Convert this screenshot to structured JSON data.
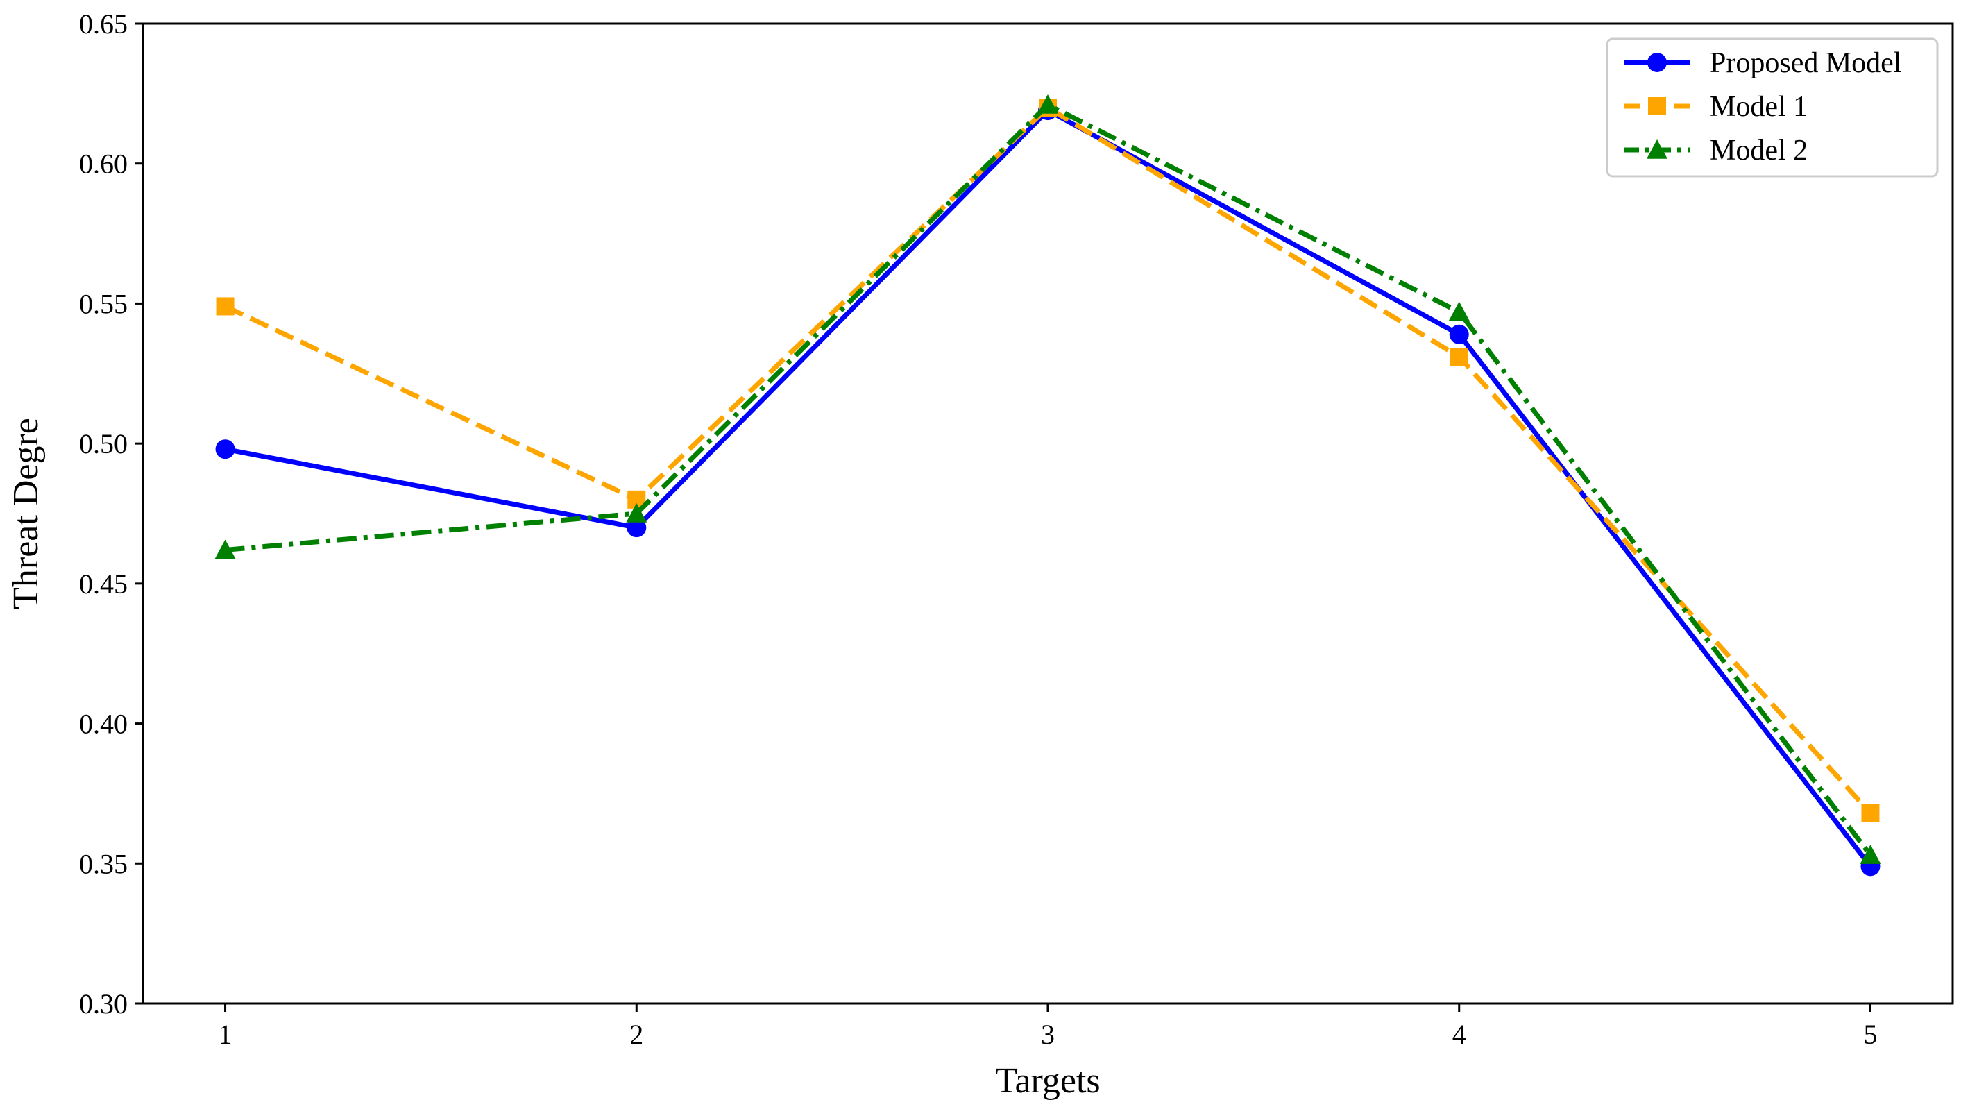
{
  "chart_data": {
    "type": "line",
    "xlabel": "Targets",
    "ylabel": "Threat Degre",
    "categories": [
      "1",
      "2",
      "3",
      "4",
      "5"
    ],
    "x": [
      1,
      2,
      3,
      4,
      5
    ],
    "xlim": [
      0.8,
      5.2
    ],
    "ylim": [
      0.3,
      0.65
    ],
    "yticks": [
      "0.30",
      "0.35",
      "0.40",
      "0.45",
      "0.50",
      "0.55",
      "0.60",
      "0.65"
    ],
    "ytick_values": [
      0.3,
      0.35,
      0.4,
      0.45,
      0.5,
      0.55,
      0.6,
      0.65
    ],
    "grid": false,
    "legend_position": "top-right",
    "series": [
      {
        "name": "Proposed Model",
        "values": [
          0.498,
          0.47,
          0.619,
          0.539,
          0.349
        ],
        "color": "#0000ff",
        "linestyle": "solid",
        "marker": "circle"
      },
      {
        "name": "Model 1",
        "values": [
          0.549,
          0.48,
          0.62,
          0.531,
          0.368
        ],
        "color": "#ffa500",
        "linestyle": "dashed",
        "marker": "square"
      },
      {
        "name": "Model 2",
        "values": [
          0.462,
          0.475,
          0.621,
          0.547,
          0.353
        ],
        "color": "#008000",
        "linestyle": "dashdot",
        "marker": "triangle"
      }
    ]
  }
}
